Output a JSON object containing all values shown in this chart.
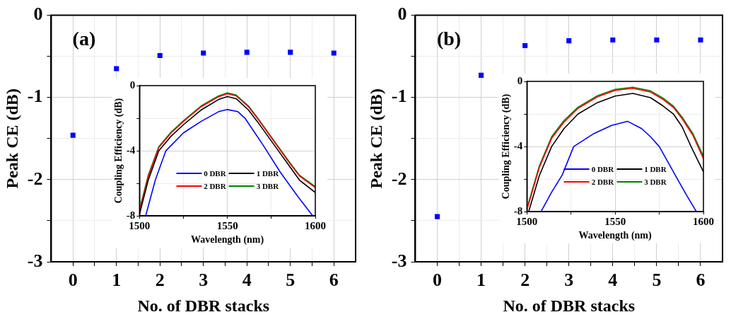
{
  "chart_data": [
    {
      "type": "scatter",
      "xlabel": "No. of DBR stacks",
      "ylabel": "Peak CE (dB)",
      "annotations": [
        "(a)"
      ],
      "x": [
        0,
        1,
        2,
        3,
        4,
        5,
        6
      ],
      "series": [
        {
          "color": "#0000ff",
          "values": [
            -1.46,
            -0.65,
            -0.49,
            -0.46,
            -0.45,
            -0.45,
            -0.46
          ]
        }
      ],
      "xlim": [
        -0.5,
        6.5
      ],
      "xticks": [
        0,
        {
          "value": 0.5,
          "label": null
        },
        1,
        {
          "value": 1.5,
          "label": null
        },
        2,
        {
          "value": 2.5,
          "label": null
        },
        3,
        {
          "value": 3.5,
          "label": null
        },
        4,
        {
          "value": 4.5,
          "label": null
        },
        5,
        {
          "value": 5.5,
          "label": null
        },
        6
      ],
      "ylim": [
        -3,
        0
      ],
      "yticks": [
        -3,
        {
          "value": -2.5,
          "label": null
        },
        -2,
        {
          "value": -1.5,
          "label": null
        },
        -1,
        {
          "value": -0.5,
          "label": null
        },
        0
      ],
      "grid": true,
      "marker": "square"
    },
    {
      "type": "line",
      "xlabel": "Wavelength (nm)",
      "ylabel": "Coupling Efficiency (dB)",
      "series": [
        {
          "name": "0 DBR",
          "color": "#0000ff",
          "x": [
            1503.5,
            1509,
            1515,
            1525,
            1535,
            1545,
            1550,
            1556,
            1560,
            1565,
            1570,
            1580,
            1590,
            1598.6
          ],
          "values": [
            -8,
            -5.8,
            -4,
            -2.9,
            -2.2,
            -1.6,
            -1.47,
            -1.6,
            -2.0,
            -2.8,
            -3.6,
            -5.3,
            -6.8,
            -8
          ]
        },
        {
          "name": "1 DBR",
          "color": "#000000",
          "x": [
            1500,
            1505,
            1511,
            1518,
            1525,
            1535,
            1545,
            1550,
            1555,
            1562,
            1567,
            1573,
            1579,
            1585,
            1591,
            1600
          ],
          "values": [
            -7.9,
            -5.8,
            -4.0,
            -3.1,
            -2.4,
            -1.5,
            -0.85,
            -0.67,
            -0.8,
            -1.5,
            -2.2,
            -3.1,
            -4.0,
            -4.9,
            -5.8,
            -6.56
          ]
        },
        {
          "name": "2 DBR",
          "color": "#ff0000",
          "x": [
            1500,
            1505,
            1511,
            1518,
            1525,
            1535,
            1545,
            1550,
            1555,
            1562,
            1567,
            1573,
            1579,
            1585,
            1591,
            1600
          ],
          "values": [
            -7.7,
            -5.6,
            -3.8,
            -2.9,
            -2.2,
            -1.3,
            -0.68,
            -0.5,
            -0.63,
            -1.3,
            -2.0,
            -2.9,
            -3.8,
            -4.7,
            -5.55,
            -6.26
          ]
        },
        {
          "name": "3 DBR",
          "color": "#008000",
          "x": [
            1500,
            1505,
            1511,
            1518,
            1525,
            1535,
            1545,
            1550,
            1555,
            1562,
            1567,
            1573,
            1579,
            1585,
            1591,
            1600
          ],
          "values": [
            -7.6,
            -5.5,
            -3.75,
            -2.85,
            -2.15,
            -1.25,
            -0.63,
            -0.45,
            -0.58,
            -1.25,
            -1.95,
            -2.85,
            -3.75,
            -4.65,
            -5.5,
            -6.2
          ]
        }
      ],
      "xlim": [
        1500,
        1600
      ],
      "xticks": [
        1500,
        {
          "value": 1525,
          "label": null
        },
        1550,
        {
          "value": 1575,
          "label": null
        },
        1600
      ],
      "ylim": [
        -8,
        0
      ],
      "yticks": [
        -8,
        {
          "value": -6,
          "label": null
        },
        -4,
        {
          "value": -2,
          "label": null
        },
        0
      ],
      "grid": true,
      "legend": "bottom"
    },
    {
      "type": "scatter",
      "xlabel": "No. of DBR stacks",
      "ylabel": "Peak CE (dB)",
      "annotations": [
        "(b)"
      ],
      "x": [
        0,
        1,
        2,
        3,
        4,
        5,
        6
      ],
      "series": [
        {
          "color": "#0000ff",
          "values": [
            -2.45,
            -0.73,
            -0.37,
            -0.31,
            -0.3,
            -0.3,
            -0.3
          ]
        }
      ],
      "xlim": [
        -0.5,
        6.5
      ],
      "xticks": [
        0,
        {
          "value": 0.5,
          "label": null
        },
        1,
        {
          "value": 1.5,
          "label": null
        },
        2,
        {
          "value": 2.5,
          "label": null
        },
        3,
        {
          "value": 3.5,
          "label": null
        },
        4,
        {
          "value": 4.5,
          "label": null
        },
        5,
        {
          "value": 5.5,
          "label": null
        },
        6
      ],
      "ylim": [
        -3,
        0
      ],
      "yticks": [
        -3,
        {
          "value": -2.5,
          "label": null
        },
        -2,
        {
          "value": -1.5,
          "label": null
        },
        -1,
        {
          "value": -0.5,
          "label": null
        },
        0
      ],
      "grid": true,
      "marker": "square"
    },
    {
      "type": "line",
      "xlabel": "Wavelength (nm)",
      "ylabel": "Coupling Efficiency (dB)",
      "series": [
        {
          "name": "0 DBR",
          "color": "#0000ff",
          "x": [
            1508,
            1514,
            1520,
            1526.5,
            1538,
            1548,
            1557,
            1565,
            1570,
            1575,
            1584,
            1590,
            1596
          ],
          "values": [
            -8,
            -6.8,
            -5.75,
            -4,
            -3.2,
            -2.7,
            -2.45,
            -2.9,
            -3.4,
            -4,
            -5.75,
            -6.9,
            -8
          ]
        },
        {
          "name": "1 DBR",
          "color": "#000000",
          "x": [
            1501,
            1507,
            1514,
            1521,
            1529,
            1540,
            1550,
            1560,
            1570,
            1577,
            1583,
            1588,
            1593,
            1600
          ],
          "values": [
            -8,
            -5.8,
            -4,
            -2.9,
            -2.0,
            -1.3,
            -0.9,
            -0.74,
            -1.0,
            -1.5,
            -2.0,
            -2.8,
            -4.0,
            -5.55
          ]
        },
        {
          "name": "2 DBR",
          "color": "#ff0000",
          "x": [
            1500,
            1507,
            1514,
            1521,
            1529,
            1540,
            1550,
            1560,
            1570,
            1577,
            1583,
            1588,
            1594,
            1600
          ],
          "values": [
            -7.9,
            -5.3,
            -3.5,
            -2.5,
            -1.65,
            -0.95,
            -0.55,
            -0.42,
            -0.65,
            -1.1,
            -1.6,
            -2.3,
            -3.3,
            -4.75
          ]
        },
        {
          "name": "3 DBR",
          "color": "#008000",
          "x": [
            1500,
            1507,
            1514,
            1521,
            1529,
            1540,
            1550,
            1560,
            1570,
            1577,
            1583,
            1588,
            1594,
            1600
          ],
          "values": [
            -7.8,
            -5.2,
            -3.4,
            -2.4,
            -1.58,
            -0.88,
            -0.49,
            -0.36,
            -0.58,
            -1.02,
            -1.52,
            -2.2,
            -3.2,
            -4.6
          ]
        }
      ],
      "xlim": [
        1500,
        1600
      ],
      "xticks": [
        1500,
        {
          "value": 1525,
          "label": null
        },
        1550,
        {
          "value": 1575,
          "label": null
        },
        1600
      ],
      "ylim": [
        -8,
        0
      ],
      "yticks": [
        -8,
        {
          "value": -6,
          "label": null
        },
        -4,
        {
          "value": -2,
          "label": null
        },
        0
      ],
      "grid": true,
      "legend": "bottom"
    }
  ]
}
